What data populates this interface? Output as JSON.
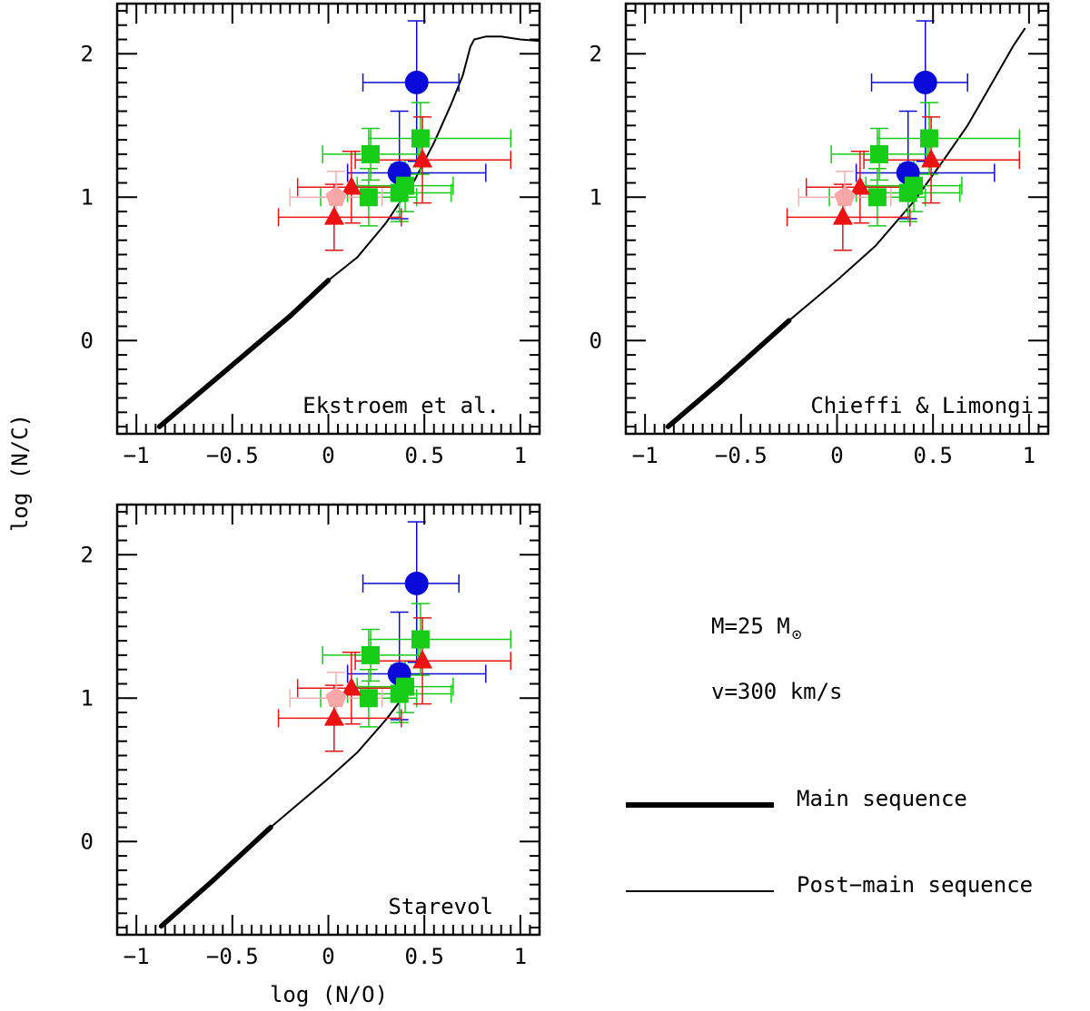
{
  "chart_data": {
    "type": "scatter",
    "xlabel": "log (N/O)",
    "ylabel": "log (N/C)",
    "xlim": [
      -1.1,
      1.1
    ],
    "ylim": [
      -0.65,
      2.35
    ],
    "xticks": [
      -1,
      -0.5,
      0,
      0.5,
      1
    ],
    "xtick_labels": [
      "−1",
      "−0.5",
      "0",
      "0.5",
      "1"
    ],
    "yticks": [
      0,
      1,
      2
    ],
    "ytick_labels": [
      "0",
      "1",
      "2"
    ],
    "observations": [
      {
        "group": "blue",
        "marker": "circle",
        "x": 0.46,
        "y": 1.8,
        "xerr": [
          0.28,
          0.22
        ],
        "yerr": [
          0.55,
          0.43
        ]
      },
      {
        "group": "blue",
        "marker": "circle",
        "x": 0.37,
        "y": 1.17,
        "xerr": [
          0.27,
          0.45
        ],
        "yerr": [
          0.32,
          0.43
        ]
      },
      {
        "group": "green",
        "marker": "square",
        "x": 0.48,
        "y": 1.41,
        "xerr": [
          0.27,
          0.47
        ],
        "yerr": [
          0.25,
          0.25
        ]
      },
      {
        "group": "green",
        "marker": "square",
        "x": 0.22,
        "y": 1.3,
        "xerr": [
          0.25,
          0.25
        ],
        "yerr": [
          0.18,
          0.18
        ]
      },
      {
        "group": "green",
        "marker": "square",
        "x": 0.21,
        "y": 1.0,
        "xerr": [
          0.25,
          0.25
        ],
        "yerr": [
          0.2,
          0.2
        ]
      },
      {
        "group": "green",
        "marker": "square",
        "x": 0.37,
        "y": 1.03,
        "xerr": [
          0.27,
          0.27
        ],
        "yerr": [
          0.2,
          0.2
        ]
      },
      {
        "group": "green",
        "marker": "square",
        "x": 0.4,
        "y": 1.08,
        "xerr": [
          0.25,
          0.25
        ],
        "yerr": [
          0.18,
          0.18
        ]
      },
      {
        "group": "red",
        "marker": "triangle",
        "x": 0.49,
        "y": 1.26,
        "xerr": [
          0.35,
          0.46
        ],
        "yerr": [
          0.3,
          0.3
        ]
      },
      {
        "group": "red",
        "marker": "triangle",
        "x": 0.12,
        "y": 1.07,
        "xerr": [
          0.28,
          0.28
        ],
        "yerr": [
          0.25,
          0.25
        ]
      },
      {
        "group": "red",
        "marker": "triangle",
        "x": 0.03,
        "y": 0.86,
        "xerr": [
          0.29,
          0.35
        ],
        "yerr": [
          0.23,
          0.23
        ]
      },
      {
        "group": "pink",
        "marker": "pentagon",
        "x": 0.04,
        "y": 1.0,
        "xerr": [
          0.24,
          0.24
        ],
        "yerr": [
          0.18,
          0.18
        ]
      }
    ],
    "panels": [
      {
        "title": "Ekstroem et al.",
        "main_sequence": [
          [
            -0.88,
            -0.6
          ],
          [
            -0.5,
            -0.17
          ],
          [
            -0.2,
            0.17
          ],
          [
            0.0,
            0.42
          ]
        ],
        "post_main_sequence": [
          [
            0.0,
            0.42
          ],
          [
            0.15,
            0.58
          ],
          [
            0.3,
            0.82
          ],
          [
            0.45,
            1.12
          ],
          [
            0.55,
            1.38
          ],
          [
            0.64,
            1.65
          ],
          [
            0.7,
            1.85
          ],
          [
            0.74,
            2.05
          ],
          [
            0.76,
            2.1
          ],
          [
            0.82,
            2.12
          ],
          [
            0.9,
            2.12
          ],
          [
            1.0,
            2.1
          ],
          [
            1.1,
            2.09
          ]
        ]
      },
      {
        "title": "Chieffi & Limongi",
        "main_sequence": [
          [
            -0.88,
            -0.6
          ],
          [
            -0.6,
            -0.28
          ],
          [
            -0.25,
            0.14
          ]
        ],
        "post_main_sequence": [
          [
            -0.25,
            0.14
          ],
          [
            0.0,
            0.42
          ],
          [
            0.2,
            0.66
          ],
          [
            0.4,
            0.97
          ],
          [
            0.55,
            1.25
          ],
          [
            0.68,
            1.5
          ],
          [
            0.8,
            1.78
          ],
          [
            0.92,
            2.06
          ],
          [
            0.98,
            2.18
          ]
        ]
      },
      {
        "title": "Starevol",
        "main_sequence": [
          [
            -0.87,
            -0.59
          ],
          [
            -0.6,
            -0.27
          ],
          [
            -0.3,
            0.1
          ]
        ],
        "post_main_sequence": [
          [
            -0.3,
            0.1
          ],
          [
            -0.15,
            0.27
          ],
          [
            0.0,
            0.44
          ],
          [
            0.15,
            0.62
          ],
          [
            0.3,
            0.85
          ],
          [
            0.38,
            0.99
          ]
        ]
      }
    ],
    "annotations": {
      "mass_text": "M=25 M",
      "mass_symbol": "⊙",
      "velocity_text": "v=300 km/s"
    },
    "legend": [
      {
        "label": "Main sequence",
        "style": "thick"
      },
      {
        "label": "Post−main sequence",
        "style": "thin"
      }
    ]
  },
  "colors": {
    "blue": "#0a0ad8",
    "green": "#16cc16",
    "red": "#ee1111",
    "pink": "#f6a8a8",
    "pink_errorbar": "#f0b0b0"
  }
}
